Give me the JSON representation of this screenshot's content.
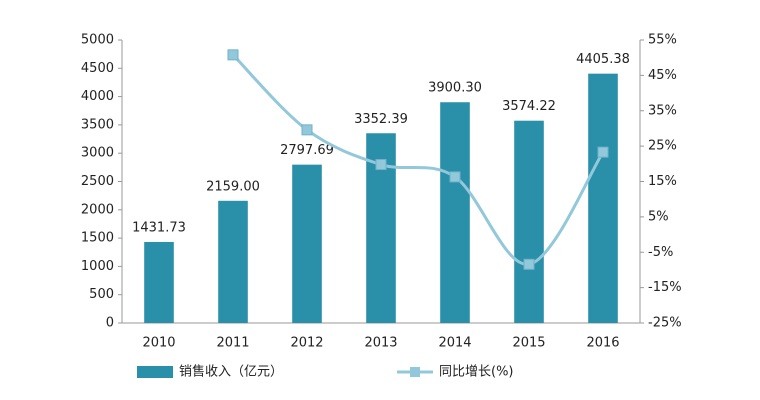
{
  "chart_data": {
    "type": "bar",
    "categories": [
      "2010",
      "2011",
      "2012",
      "2013",
      "2014",
      "2015",
      "2016"
    ],
    "series": [
      {
        "name": "销售收入（亿元）",
        "type": "bar",
        "color": "#2a8fa8",
        "values": [
          1431.73,
          2159.0,
          2797.69,
          3352.39,
          3900.3,
          3574.22,
          4405.38
        ],
        "value_labels": [
          "1431.73",
          "2159.00",
          "2797.69",
          "3352.39",
          "3900.30",
          "3574.22",
          "4405.38"
        ]
      },
      {
        "name": "同比增长(%)",
        "type": "line",
        "axis": "y2",
        "color": "#92c8da",
        "values": [
          null,
          50.8,
          29.6,
          19.8,
          16.3,
          -8.4,
          23.3
        ]
      }
    ],
    "ylim": [
      0,
      5000
    ],
    "yticks": [
      0,
      500,
      1000,
      1500,
      2000,
      2500,
      3000,
      3500,
      4000,
      4500,
      5000
    ],
    "y2lim": [
      -25,
      55
    ],
    "y2ticks": [
      {
        "value": -25,
        "label": "-25%"
      },
      {
        "value": -15,
        "label": "-15%"
      },
      {
        "value": -5,
        "label": "-5%"
      },
      {
        "value": 5,
        "label": "5%"
      },
      {
        "value": 15,
        "label": "15%"
      },
      {
        "value": 25,
        "label": "25%"
      },
      {
        "value": 35,
        "label": "35%"
      },
      {
        "value": 45,
        "label": "45%"
      },
      {
        "value": 55,
        "label": "55%"
      }
    ],
    "legend": "bottom"
  }
}
